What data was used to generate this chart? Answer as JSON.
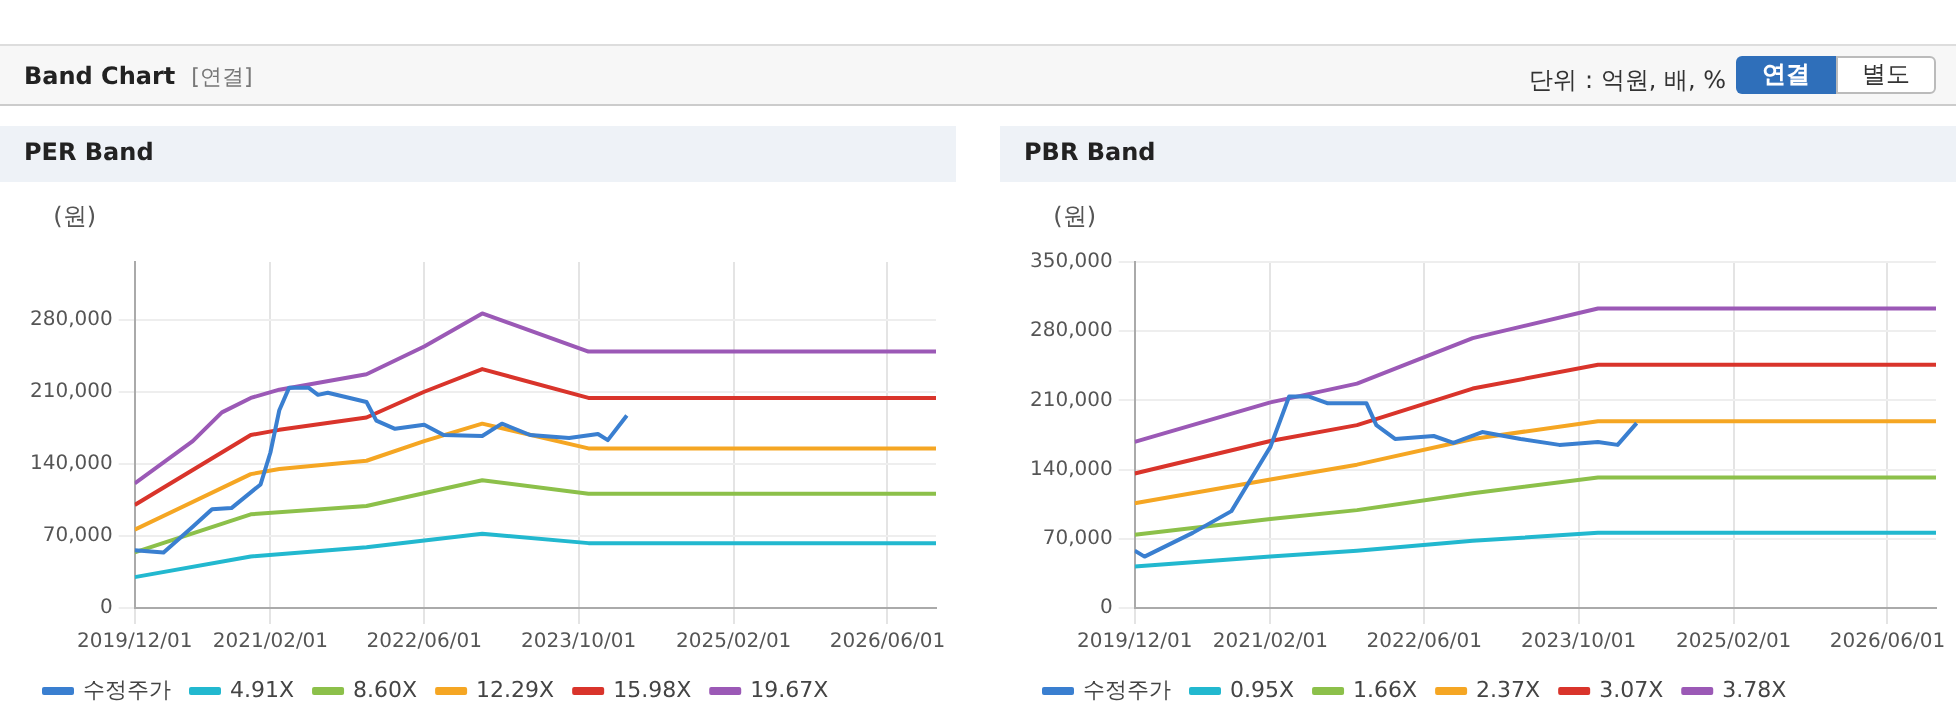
{
  "chart_data": [
    {
      "type": "other",
      "title": "Band Chart",
      "annotations": [
        "[연결]",
        "단위 : 억원, 배, %",
        "연결",
        "별도"
      ]
    },
    {
      "type": "line",
      "title": "PER Band",
      "ylabel": "(원)",
      "xlim": [
        "2019-12-01",
        "2026-11-01"
      ],
      "xticks": [
        {
          "value": "2019-12-01",
          "label": "2019/12/01"
        },
        {
          "value": "2021-02-01",
          "label": "2021/02/01"
        },
        {
          "value": "2022-06-01",
          "label": "2022/06/01"
        },
        {
          "value": "2023-10-01",
          "label": "2023/10/01"
        },
        {
          "value": "2025-02-01",
          "label": "2025/02/01"
        },
        {
          "value": "2026-06-01",
          "label": "2026/06/01"
        }
      ],
      "ylim": [
        0,
        336000
      ],
      "yticks": [
        {
          "value": 0,
          "label": "0"
        },
        {
          "value": 70000,
          "label": "70,000"
        },
        {
          "value": 140000,
          "label": "140,000"
        },
        {
          "value": 210000,
          "label": "210,000"
        },
        {
          "value": 280000,
          "label": "280,000"
        }
      ],
      "grid": true,
      "legend": "bottom",
      "marker": "none",
      "line_style": "solid",
      "series": [
        {
          "name": "수정주가",
          "color": "#3a7fd0",
          "x": [
            "2019-12",
            "2020-03",
            "2020-06",
            "2020-08",
            "2020-10",
            "2021-01",
            "2021-02",
            "2021-03",
            "2021-04",
            "2021-06",
            "2021-07",
            "2021-08",
            "2021-12",
            "2022-01",
            "2022-03",
            "2022-06",
            "2022-08",
            "2022-12",
            "2023-02",
            "2023-05",
            "2023-09",
            "2023-12",
            "2024-01",
            "2024-03"
          ],
          "values": [
            56000,
            54000,
            79000,
            96000,
            97000,
            120000,
            151000,
            192000,
            214000,
            214000,
            207000,
            209000,
            200000,
            182000,
            174000,
            178000,
            168000,
            167000,
            179000,
            168000,
            165000,
            169000,
            163000,
            187000
          ]
        },
        {
          "name": "4.91X",
          "color": "#22b8cf",
          "x": [
            "2019-12",
            "2020-12",
            "2021-12",
            "2022-12",
            "2023-11",
            "2026-11"
          ],
          "values": [
            30000,
            50000,
            59000,
            72000,
            63000,
            63000
          ]
        },
        {
          "name": "8.60X",
          "color": "#8cc04a",
          "x": [
            "2019-12",
            "2020-12",
            "2021-12",
            "2022-12",
            "2023-11",
            "2026-11"
          ],
          "values": [
            54000,
            91000,
            99000,
            124000,
            111000,
            111000
          ]
        },
        {
          "name": "12.29X",
          "color": "#f5a623",
          "x": [
            "2019-12",
            "2020-12",
            "2021-03",
            "2021-12",
            "2022-06",
            "2022-12",
            "2023-11",
            "2026-11"
          ],
          "values": [
            76000,
            130000,
            135000,
            143000,
            162000,
            179000,
            155000,
            155000
          ]
        },
        {
          "name": "15.98X",
          "color": "#d9342b",
          "x": [
            "2019-12",
            "2020-12",
            "2021-03",
            "2021-12",
            "2022-06",
            "2022-12",
            "2023-11",
            "2026-11"
          ],
          "values": [
            100000,
            168000,
            173000,
            185000,
            210000,
            232000,
            204000,
            204000
          ]
        },
        {
          "name": "19.67X",
          "color": "#9b59b6",
          "x": [
            "2019-12",
            "2020-06",
            "2020-09",
            "2020-12",
            "2021-03",
            "2021-12",
            "2022-06",
            "2022-12",
            "2023-11",
            "2026-11"
          ],
          "values": [
            121000,
            162000,
            190000,
            204000,
            212000,
            227000,
            254000,
            286000,
            249000,
            249000
          ]
        }
      ]
    },
    {
      "type": "line",
      "title": "PBR Band",
      "ylabel": "(원)",
      "xlim": [
        "2019-12-01",
        "2026-11-01"
      ],
      "xticks": [
        {
          "value": "2019-12-01",
          "label": "2019/12/01"
        },
        {
          "value": "2021-02-01",
          "label": "2021/02/01"
        },
        {
          "value": "2022-06-01",
          "label": "2022/06/01"
        },
        {
          "value": "2023-10-01",
          "label": "2023/10/01"
        },
        {
          "value": "2025-02-01",
          "label": "2025/02/01"
        },
        {
          "value": "2026-06-01",
          "label": "2026/06/01"
        }
      ],
      "ylim": [
        0,
        350000
      ],
      "yticks": [
        {
          "value": 0,
          "label": "0"
        },
        {
          "value": 70000,
          "label": "70,000"
        },
        {
          "value": 140000,
          "label": "140,000"
        },
        {
          "value": 210000,
          "label": "210,000"
        },
        {
          "value": 280000,
          "label": "280,000"
        },
        {
          "value": 350000,
          "label": "350,000"
        }
      ],
      "grid": true,
      "legend": "bottom",
      "marker": "none",
      "line_style": "solid",
      "series": [
        {
          "name": "수정주가",
          "color": "#3a7fd0",
          "x": [
            "2019-12",
            "2020-01",
            "2020-06",
            "2020-10",
            "2021-02",
            "2021-04",
            "2021-06",
            "2021-08",
            "2021-12",
            "2022-01",
            "2022-03",
            "2022-07",
            "2022-09",
            "2022-12",
            "2023-04",
            "2023-08",
            "2023-12",
            "2024-02",
            "2024-04"
          ],
          "values": [
            58000,
            52000,
            76000,
            98000,
            163000,
            214000,
            214000,
            207000,
            207000,
            185000,
            171000,
            174000,
            167000,
            178000,
            171000,
            165000,
            168000,
            165000,
            187000
          ]
        },
        {
          "name": "0.95X",
          "color": "#22b8cf",
          "x": [
            "2019-12",
            "2021-02",
            "2021-11",
            "2022-11",
            "2023-12",
            "2026-11"
          ],
          "values": [
            42000,
            52000,
            58000,
            68000,
            76000,
            76000
          ]
        },
        {
          "name": "1.66X",
          "color": "#8cc04a",
          "x": [
            "2019-12",
            "2021-02",
            "2021-11",
            "2022-11",
            "2023-12",
            "2026-11"
          ],
          "values": [
            74000,
            90000,
            99000,
            116000,
            132000,
            132000
          ]
        },
        {
          "name": "2.37X",
          "color": "#f5a623",
          "x": [
            "2019-12",
            "2021-02",
            "2021-11",
            "2022-11",
            "2023-12",
            "2026-11"
          ],
          "values": [
            106000,
            130000,
            145000,
            171000,
            189000,
            189000
          ]
        },
        {
          "name": "3.07X",
          "color": "#d9342b",
          "x": [
            "2019-12",
            "2021-02",
            "2021-11",
            "2022-11",
            "2023-12",
            "2026-11"
          ],
          "values": [
            136000,
            169000,
            185000,
            222000,
            246000,
            246000
          ]
        },
        {
          "name": "3.78X",
          "color": "#9b59b6",
          "x": [
            "2019-12",
            "2021-02",
            "2021-11",
            "2022-11",
            "2023-12",
            "2026-11"
          ],
          "values": [
            168000,
            208000,
            227000,
            273000,
            303000,
            303000
          ]
        }
      ]
    }
  ]
}
